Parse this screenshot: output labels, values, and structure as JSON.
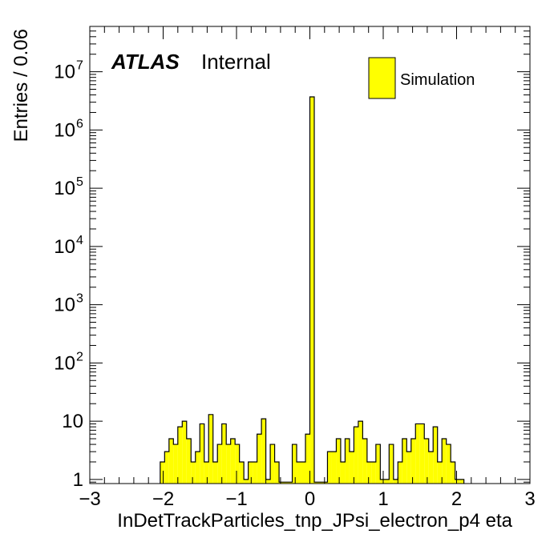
{
  "chart_data": {
    "type": "bar",
    "title": "",
    "xlabel": "InDetTrackParticles_tnp_JPsi_electron_p4 eta",
    "ylabel": "Entries / 0.06",
    "xlim": [
      -3,
      3
    ],
    "ylim": [
      0.85,
      60000000
    ],
    "yscale": "log",
    "grid": false,
    "bin_width": 0.06,
    "x_ticks": [
      -3,
      -2,
      -1,
      0,
      1,
      2,
      3
    ],
    "x_tick_labels": [
      "−3",
      "−2",
      "−1",
      "0",
      "1",
      "2",
      "3"
    ],
    "y_ticks": [
      1,
      10,
      100,
      1000,
      10000,
      100000,
      1000000,
      10000000
    ],
    "y_tick_labels": [
      {
        "base": "1",
        "exp": ""
      },
      {
        "base": "10",
        "exp": ""
      },
      {
        "base": "10",
        "exp": "2"
      },
      {
        "base": "10",
        "exp": "3"
      },
      {
        "base": "10",
        "exp": "4"
      },
      {
        "base": "10",
        "exp": "5"
      },
      {
        "base": "10",
        "exp": "6"
      },
      {
        "base": "10",
        "exp": "7"
      }
    ],
    "legend": {
      "position": "top-right",
      "entries": [
        {
          "name": "Simulation",
          "color": "#ffff00"
        }
      ]
    },
    "label": {
      "experiment": "ATLAS",
      "status": "Internal"
    },
    "colors": {
      "fill": "#ffff00",
      "edge": "#000000"
    },
    "series": [
      {
        "name": "Simulation",
        "bins": [
          [
            -2.04,
            2
          ],
          [
            -1.98,
            3
          ],
          [
            -1.92,
            5
          ],
          [
            -1.86,
            4
          ],
          [
            -1.8,
            8
          ],
          [
            -1.74,
            10
          ],
          [
            -1.68,
            5
          ],
          [
            -1.62,
            2
          ],
          [
            -1.56,
            3
          ],
          [
            -1.5,
            9
          ],
          [
            -1.44,
            2
          ],
          [
            -1.38,
            13
          ],
          [
            -1.32,
            2
          ],
          [
            -1.26,
            4
          ],
          [
            -1.2,
            9
          ],
          [
            -1.14,
            4
          ],
          [
            -1.08,
            5
          ],
          [
            -1.02,
            4
          ],
          [
            -0.96,
            2
          ],
          [
            -0.9,
            1
          ],
          [
            -0.84,
            2
          ],
          [
            -0.78,
            2
          ],
          [
            -0.72,
            6
          ],
          [
            -0.66,
            11
          ],
          [
            -0.6,
            1
          ],
          [
            -0.54,
            4
          ],
          [
            -0.48,
            2
          ],
          [
            -0.42,
            0.9
          ],
          [
            -0.36,
            0.9
          ],
          [
            -0.3,
            0.9
          ],
          [
            -0.24,
            4
          ],
          [
            -0.18,
            2
          ],
          [
            -0.12,
            2
          ],
          [
            -0.06,
            6
          ],
          [
            0.0,
            3700000
          ],
          [
            0.06,
            0.9
          ],
          [
            0.12,
            0.9
          ],
          [
            0.18,
            0.9
          ],
          [
            0.24,
            3
          ],
          [
            0.3,
            3
          ],
          [
            0.36,
            5
          ],
          [
            0.42,
            2
          ],
          [
            0.48,
            5
          ],
          [
            0.54,
            3
          ],
          [
            0.6,
            8
          ],
          [
            0.66,
            10
          ],
          [
            0.72,
            5
          ],
          [
            0.78,
            2
          ],
          [
            0.84,
            2
          ],
          [
            0.9,
            4
          ],
          [
            0.96,
            1
          ],
          [
            1.02,
            1
          ],
          [
            1.08,
            4
          ],
          [
            1.14,
            1
          ],
          [
            1.2,
            2
          ],
          [
            1.26,
            5
          ],
          [
            1.32,
            3
          ],
          [
            1.38,
            5
          ],
          [
            1.44,
            9
          ],
          [
            1.5,
            9
          ],
          [
            1.56,
            5
          ],
          [
            1.62,
            3
          ],
          [
            1.68,
            8
          ],
          [
            1.74,
            2
          ],
          [
            1.8,
            5
          ],
          [
            1.86,
            4
          ],
          [
            1.92,
            2
          ],
          [
            1.98,
            1
          ],
          [
            2.04,
            1
          ]
        ]
      }
    ]
  }
}
